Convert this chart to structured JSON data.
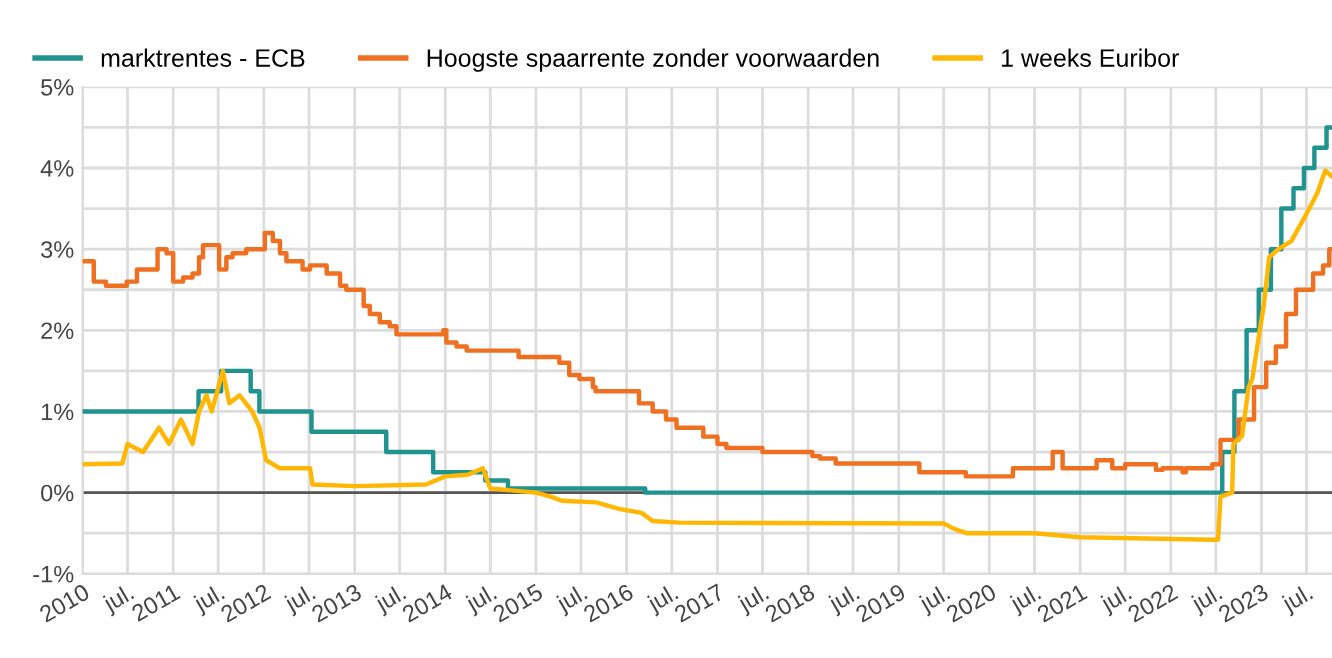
{
  "chart_data": {
    "type": "line",
    "xlim": [
      "2010-01-01",
      "2023-10-12"
    ],
    "xticks": [
      {
        "value": "2010-01-01",
        "label": "2010"
      },
      {
        "value": "2010-07-01",
        "label": "jul."
      },
      {
        "value": "2011-01-01",
        "label": "2011"
      },
      {
        "value": "2011-07-01",
        "label": "jul."
      },
      {
        "value": "2012-01-01",
        "label": "2012"
      },
      {
        "value": "2012-07-01",
        "label": "jul."
      },
      {
        "value": "2013-01-01",
        "label": "2013"
      },
      {
        "value": "2013-07-01",
        "label": "jul."
      },
      {
        "value": "2014-01-01",
        "label": "2014"
      },
      {
        "value": "2014-07-01",
        "label": "jul."
      },
      {
        "value": "2015-01-01",
        "label": "2015"
      },
      {
        "value": "2015-07-01",
        "label": "jul."
      },
      {
        "value": "2016-01-01",
        "label": "2016"
      },
      {
        "value": "2016-07-01",
        "label": "jul."
      },
      {
        "value": "2017-01-01",
        "label": "2017"
      },
      {
        "value": "2017-07-01",
        "label": "jul."
      },
      {
        "value": "2018-01-01",
        "label": "2018"
      },
      {
        "value": "2018-07-01",
        "label": "jul."
      },
      {
        "value": "2019-01-01",
        "label": "2019"
      },
      {
        "value": "2019-07-01",
        "label": "jul."
      },
      {
        "value": "2020-01-01",
        "label": "2020"
      },
      {
        "value": "2020-07-01",
        "label": "jul."
      },
      {
        "value": "2021-01-01",
        "label": "2021"
      },
      {
        "value": "2021-07-01",
        "label": "jul."
      },
      {
        "value": "2022-01-01",
        "label": "2022"
      },
      {
        "value": "2022-07-01",
        "label": "jul."
      },
      {
        "value": "2023-01-01",
        "label": "2023"
      },
      {
        "value": "2023-07-01",
        "label": "jul."
      }
    ],
    "ylim": [
      -1,
      5
    ],
    "yticks": [
      {
        "value": -1,
        "label": "-1%"
      },
      {
        "value": -0.5,
        "label": null
      },
      {
        "value": 0,
        "label": "0%"
      },
      {
        "value": 0.5,
        "label": null
      },
      {
        "value": 1,
        "label": "1%"
      },
      {
        "value": 1.5,
        "label": null
      },
      {
        "value": 2,
        "label": "2%"
      },
      {
        "value": 2.5,
        "label": null
      },
      {
        "value": 3,
        "label": "3%"
      },
      {
        "value": 3.5,
        "label": null
      },
      {
        "value": 4,
        "label": "4%"
      },
      {
        "value": 4.5,
        "label": null
      },
      {
        "value": 5,
        "label": "5%"
      }
    ],
    "grid": true,
    "legend": "top left",
    "ref_lines": [
      {
        "axis": "y",
        "value": 0,
        "label": null,
        "color": "#555555"
      }
    ],
    "series": [
      {
        "name": "marktrentes - ECB",
        "type": "step",
        "color": "#21938f",
        "x": [
          "2010-01-01",
          "2011-04-13",
          "2011-07-13",
          "2011-11-09",
          "2011-12-14",
          "2012-07-11",
          "2013-05-08",
          "2013-11-13",
          "2014-06-11",
          "2014-09-10",
          "2016-03-16",
          "2022-07-27",
          "2022-09-14",
          "2022-11-02",
          "2022-12-21",
          "2023-02-08",
          "2023-03-22",
          "2023-05-10",
          "2023-06-21",
          "2023-08-02",
          "2023-09-20",
          "2023-10-10"
        ],
        "values": [
          1.0,
          1.25,
          1.5,
          1.25,
          1.0,
          0.75,
          0.5,
          0.25,
          0.15,
          0.05,
          0.0,
          0.5,
          1.25,
          2.0,
          2.5,
          3.0,
          3.5,
          3.75,
          4.0,
          4.25,
          4.5,
          4.5
        ]
      },
      {
        "name": "Hoogste spaarrente zonder voorwaarden",
        "type": "step",
        "color": "#f07022",
        "x": [
          "2010-01-01",
          "2010-02-15",
          "2010-04-05",
          "2010-06-28",
          "2010-08-08",
          "2010-10-30",
          "2010-12-05",
          "2011-01-01",
          "2011-02-10",
          "2011-03-20",
          "2011-04-15",
          "2011-05-01",
          "2011-07-05",
          "2011-08-03",
          "2011-08-28",
          "2011-10-22",
          "2012-01-05",
          "2012-02-06",
          "2012-03-06",
          "2012-04-01",
          "2012-06-05",
          "2012-07-05",
          "2012-09-10",
          "2012-11-03",
          "2012-11-28",
          "2013-02-06",
          "2013-03-03",
          "2013-04-12",
          "2013-05-22",
          "2013-06-18",
          "2013-12-24",
          "2014-01-05",
          "2014-02-15",
          "2014-03-28",
          "2014-10-23",
          "2015-04-05",
          "2015-05-15",
          "2015-06-25",
          "2015-08-18",
          "2015-08-29",
          "2016-02-20",
          "2016-04-15",
          "2016-06-08",
          "2016-07-20",
          "2016-11-05",
          "2017-01-01",
          "2017-02-06",
          "2017-07-01",
          "2018-01-18",
          "2018-02-18",
          "2018-04-22",
          "2019-03-25",
          "2019-09-28",
          "2020-04-05",
          "2020-09-12",
          "2020-10-22",
          "2021-03-08",
          "2021-05-10",
          "2021-07-01",
          "2021-11-02",
          "2021-11-28",
          "2022-02-17",
          "2022-03-03",
          "2022-06-17",
          "2022-07-20",
          "2022-10-01",
          "2022-12-02",
          "2023-01-20",
          "2023-02-28",
          "2023-04-10",
          "2023-05-20",
          "2023-07-28",
          "2023-09-06",
          "2023-10-01",
          "2023-10-10"
        ],
        "values": [
          2.85,
          2.6,
          2.55,
          2.6,
          2.75,
          3.0,
          2.95,
          2.6,
          2.65,
          2.7,
          2.9,
          3.05,
          2.75,
          2.9,
          2.95,
          3.0,
          3.2,
          3.1,
          2.95,
          2.85,
          2.75,
          2.8,
          2.7,
          2.55,
          2.5,
          2.3,
          2.2,
          2.1,
          2.05,
          1.95,
          2.0,
          1.85,
          1.8,
          1.75,
          1.67,
          1.6,
          1.45,
          1.4,
          1.3,
          1.25,
          1.1,
          1.0,
          0.9,
          0.8,
          0.69,
          0.6,
          0.55,
          0.5,
          0.45,
          0.42,
          0.36,
          0.25,
          0.2,
          0.3,
          0.5,
          0.3,
          0.4,
          0.3,
          0.35,
          0.28,
          0.3,
          0.25,
          0.3,
          0.35,
          0.65,
          0.9,
          1.3,
          1.6,
          1.8,
          2.2,
          2.5,
          2.7,
          2.8,
          3.0,
          3.0
        ]
      },
      {
        "name": "1 weeks Euribor",
        "color": "#ffb703",
        "x": [
          "2010-01-01",
          "2010-06-10",
          "2010-07-01",
          "2010-09-01",
          "2010-11-05",
          "2010-12-15",
          "2011-02-01",
          "2011-03-20",
          "2011-04-15",
          "2011-05-15",
          "2011-06-05",
          "2011-07-20",
          "2011-08-15",
          "2011-09-25",
          "2011-11-15",
          "2011-12-15",
          "2012-01-10",
          "2012-03-05",
          "2012-07-05",
          "2012-07-15",
          "2013-01-05",
          "2013-10-15",
          "2014-01-01",
          "2014-04-01",
          "2014-06-01",
          "2014-07-01",
          "2015-01-01",
          "2015-03-01",
          "2015-04-15",
          "2015-09-01",
          "2015-12-01",
          "2016-03-01",
          "2016-04-15",
          "2016-08-01",
          "2019-07-01",
          "2019-08-15",
          "2019-10-01",
          "2020-07-01",
          "2021-01-01",
          "2022-06-20",
          "2022-07-10",
          "2022-07-20",
          "2022-09-05",
          "2022-09-10",
          "2022-10-15",
          "2022-11-10",
          "2022-11-25",
          "2022-12-20",
          "2023-01-10",
          "2023-02-01",
          "2023-03-10",
          "2023-05-01",
          "2023-06-25",
          "2023-08-15",
          "2023-09-15",
          "2023-10-10"
        ],
        "values": [
          0.35,
          0.36,
          0.6,
          0.5,
          0.8,
          0.6,
          0.9,
          0.6,
          1.0,
          1.2,
          1.0,
          1.5,
          1.1,
          1.2,
          1.0,
          0.8,
          0.4,
          0.3,
          0.3,
          0.1,
          0.08,
          0.1,
          0.2,
          0.22,
          0.3,
          0.05,
          0.0,
          -0.05,
          -0.1,
          -0.12,
          -0.2,
          -0.25,
          -0.35,
          -0.37,
          -0.38,
          -0.45,
          -0.5,
          -0.5,
          -0.55,
          -0.58,
          -0.58,
          -0.05,
          0.0,
          0.6,
          0.7,
          1.3,
          1.4,
          1.9,
          2.3,
          2.9,
          3.0,
          3.1,
          3.4,
          3.7,
          3.97,
          3.9
        ]
      }
    ]
  }
}
